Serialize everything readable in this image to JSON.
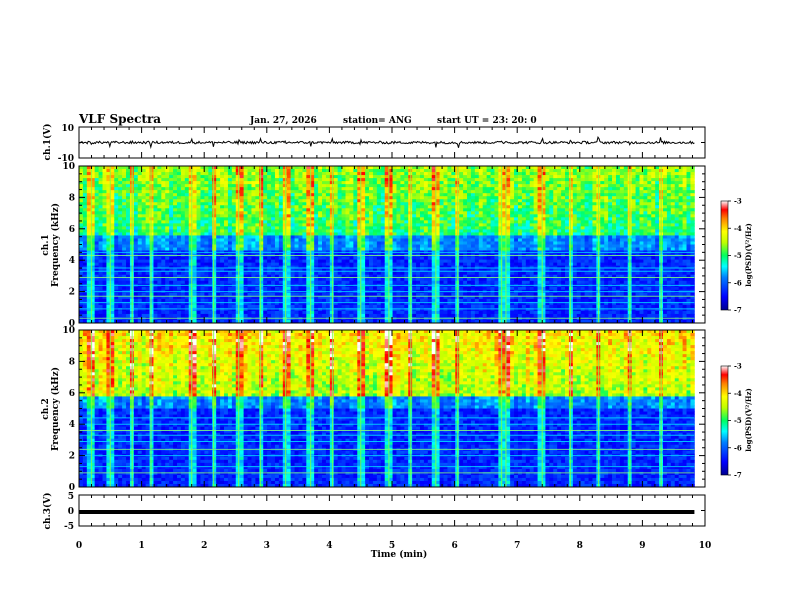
{
  "header": {
    "title": "VLF Spectra",
    "date": "Jan. 27, 2026",
    "station": "station= ANG",
    "start": "start  UT =   23: 20: 0"
  },
  "chart_data": {
    "type": "heatmap",
    "xlabel": "Time  (min)",
    "xlim": [
      0,
      10
    ],
    "xticks": [
      "0",
      "1",
      "2",
      "3",
      "4",
      "5",
      "6",
      "7",
      "8",
      "9",
      "10"
    ],
    "data_end_min": 9.83,
    "panels": [
      {
        "id": "ch1-wave",
        "type": "line",
        "ylabel": "ch.1(V)",
        "ylim": [
          -10,
          10
        ],
        "yticks": [
          "10",
          "-10"
        ],
        "baseline_v": 0
      },
      {
        "id": "ch1-spec",
        "type": "heatmap",
        "ylabel_top": "ch.1",
        "ylabel": "Frequency  (kHz)",
        "ylim": [
          0,
          10
        ],
        "yticks": [
          "0",
          "2",
          "4",
          "6",
          "8",
          "10"
        ],
        "noise_floor_khz": 5.5,
        "narrowband_lines_khz": [
          0.3,
          0.9,
          1.3,
          1.7,
          2.0,
          2.4,
          2.9,
          3.3,
          3.5,
          4.3,
          4.5
        ],
        "colorbar": {
          "label": "log(PSD)(V²/Hz)",
          "min": -7,
          "max": -3,
          "ticks": [
            "-3",
            "-4",
            "-5",
            "-6",
            "-7"
          ]
        }
      },
      {
        "id": "ch2-spec",
        "type": "heatmap",
        "ylabel_top": "ch.2",
        "ylabel": "Frequency  (kHz)",
        "ylim": [
          0,
          10
        ],
        "yticks": [
          "0",
          "2",
          "4",
          "6",
          "8",
          "10"
        ],
        "noise_floor_khz": 5.8,
        "narrowband_lines_khz": [
          0.9,
          1.3,
          2.0,
          2.4,
          2.9,
          3.3,
          3.6,
          4.0,
          4.4
        ],
        "colorbar": {
          "label": "log(PSD)(V²/Hz)",
          "min": -7,
          "max": -3,
          "ticks": [
            "-3",
            "-4",
            "-5",
            "-6",
            "-7"
          ]
        }
      },
      {
        "id": "ch3-wave",
        "type": "line",
        "ylabel": "ch.3(V)",
        "ylim": [
          -5,
          5
        ],
        "yticks": [
          "5",
          "0",
          "-5"
        ],
        "baseline_v": -0.5
      }
    ],
    "sferic_times_min": [
      0.2,
      0.5,
      0.85,
      1.15,
      1.8,
      2.15,
      2.55,
      2.9,
      3.3,
      3.7,
      4.05,
      4.5,
      4.95,
      5.3,
      5.7,
      6.05,
      6.75,
      6.82,
      7.4,
      7.85,
      8.3,
      8.8,
      9.3
    ]
  }
}
